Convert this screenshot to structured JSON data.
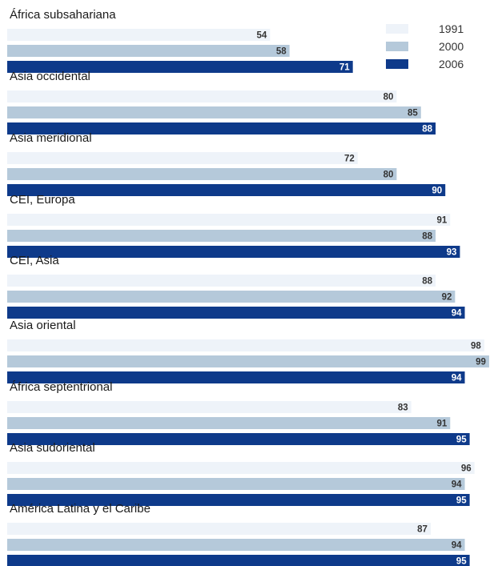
{
  "chart_data": {
    "type": "bar",
    "orientation": "horizontal",
    "legend_position": "top-right",
    "grid": false,
    "xlim": [
      0,
      100
    ],
    "series": [
      {
        "name": "1991",
        "color": "#eef3f9",
        "label_color": "#333333"
      },
      {
        "name": "2000",
        "color": "#b5c9da",
        "label_color": "#333333"
      },
      {
        "name": "2006",
        "color": "#0e3a8a",
        "label_color": "#ffffff"
      }
    ],
    "categories": [
      "África subsahariana",
      "Asia occidental",
      "Asia meridional",
      "CEI, Europa",
      "CEI, Asia",
      "Asia oriental",
      "África septentrional",
      "Asia sudoriental",
      "América Latina y el Caribe"
    ],
    "values": [
      [
        54,
        58,
        71
      ],
      [
        80,
        85,
        88
      ],
      [
        72,
        80,
        90
      ],
      [
        91,
        88,
        93
      ],
      [
        88,
        92,
        94
      ],
      [
        98,
        99,
        94
      ],
      [
        83,
        91,
        95
      ],
      [
        96,
        94,
        95
      ],
      [
        87,
        94,
        95
      ]
    ]
  }
}
